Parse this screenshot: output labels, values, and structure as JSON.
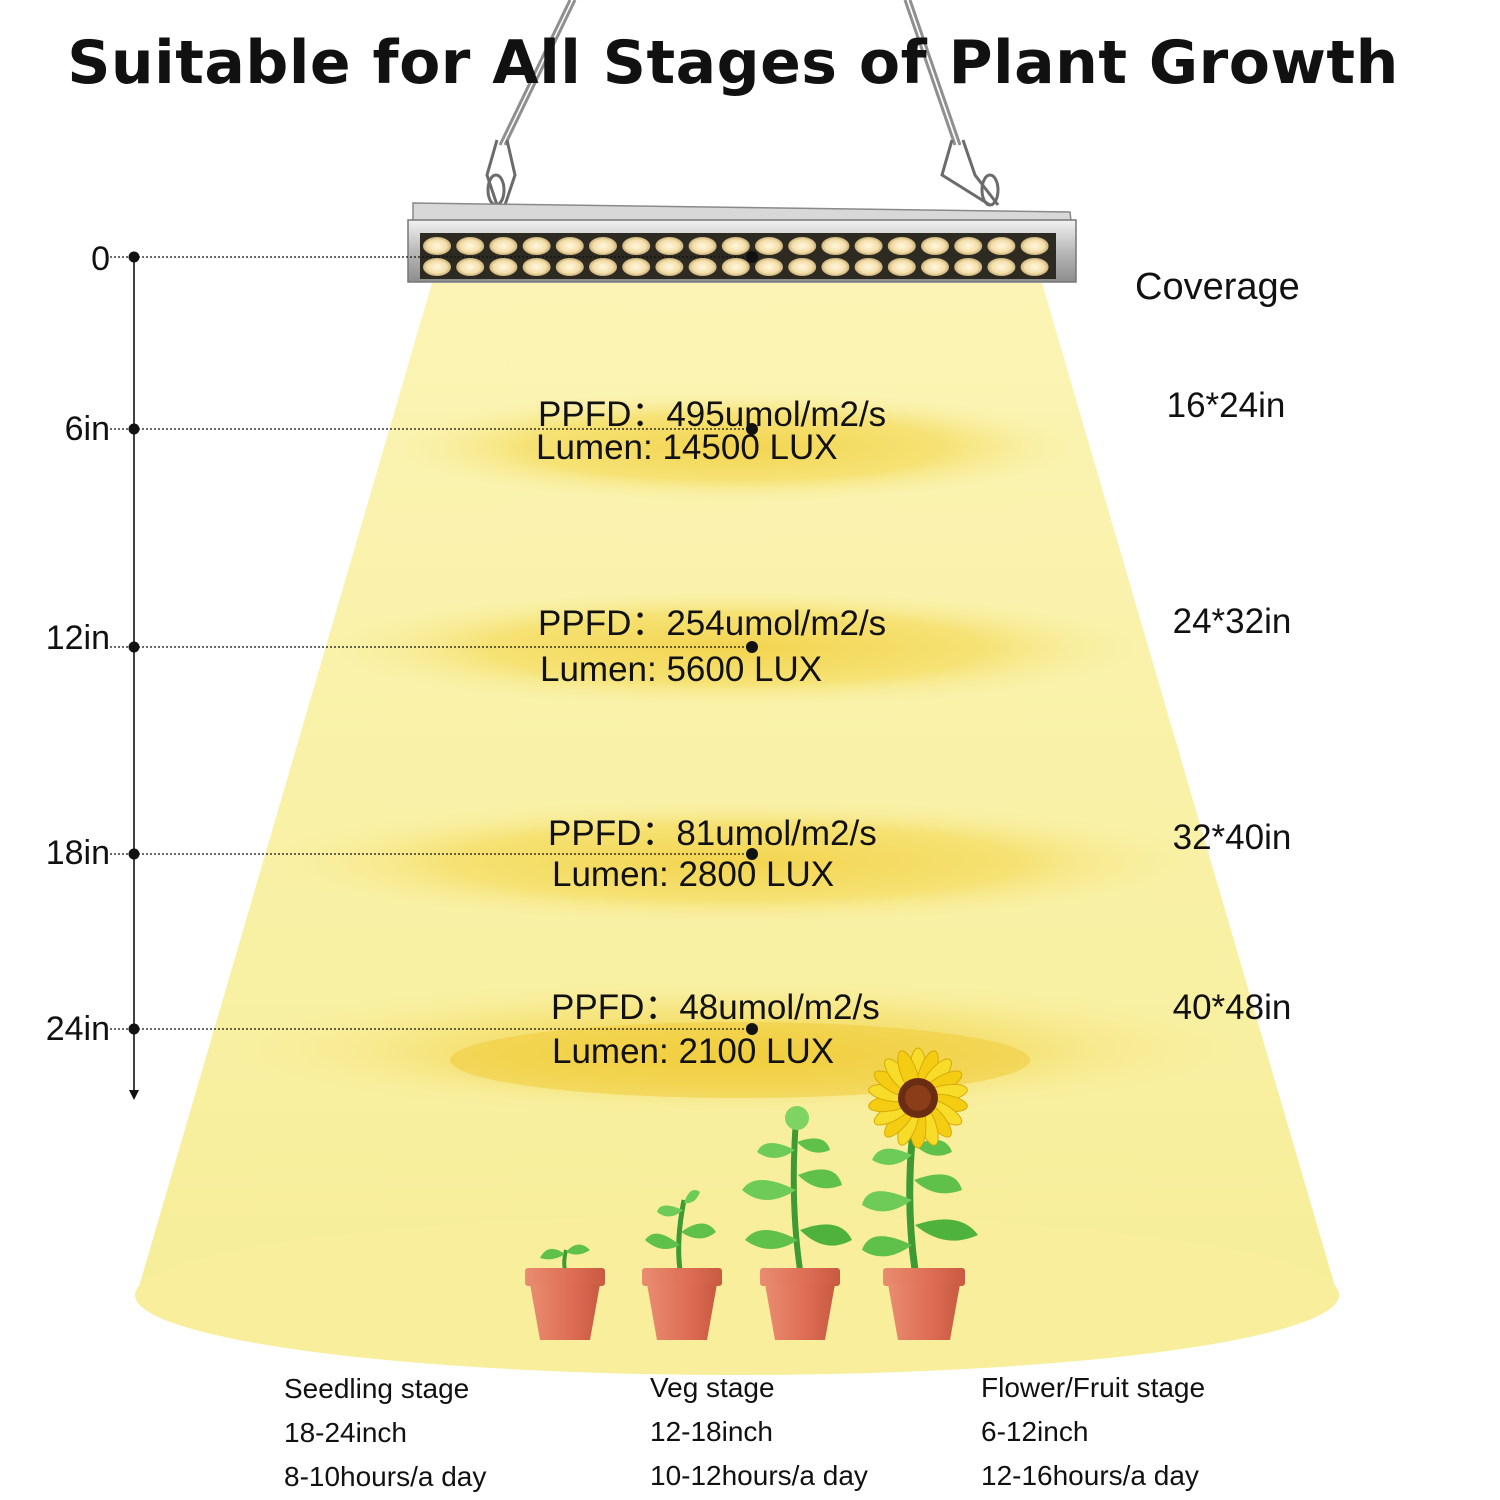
{
  "title": "Suitable for All Stages of Plant Growth",
  "coverage_heading": "Coverage",
  "colors": {
    "light_beam": "#f9f1a0",
    "light_spot": "#f3da55",
    "pot": "#e07257",
    "leaf": "#5fc04a",
    "petal": "#f6d51a"
  },
  "levels": [
    {
      "distance": "0"
    },
    {
      "distance": "6in",
      "ppfd": "PPFD：495umol/m2/s",
      "lumen": "Lumen: 14500 LUX",
      "coverage": "16*24in"
    },
    {
      "distance": "12in",
      "ppfd": "PPFD：254umol/m2/s",
      "lumen": "Lumen: 5600 LUX",
      "coverage": "24*32in"
    },
    {
      "distance": "18in",
      "ppfd": "PPFD：81umol/m2/s",
      "lumen": "Lumen: 2800 LUX",
      "coverage": "32*40in"
    },
    {
      "distance": "24in",
      "ppfd": "PPFD：48umol/m2/s",
      "lumen": "Lumen: 2100 LUX",
      "coverage": "40*48in"
    }
  ],
  "stages": [
    {
      "name": "Seedling stage",
      "distance": "18-24inch",
      "hours": "8-10hours/a day"
    },
    {
      "name": "Veg stage",
      "distance": "12-18inch",
      "hours": "10-12hours/a day"
    },
    {
      "name": "Flower/Fruit stage",
      "distance": "6-12inch",
      "hours": "12-16hours/a day"
    }
  ]
}
